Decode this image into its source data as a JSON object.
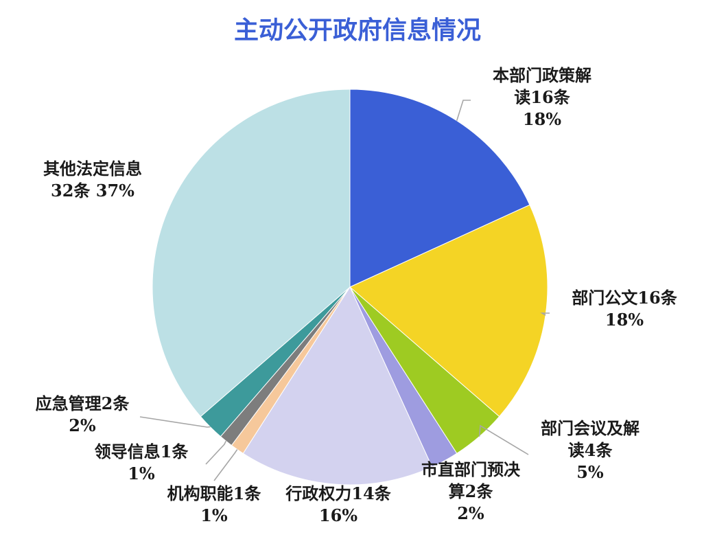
{
  "chart_data": {
    "type": "pie",
    "title": "主动公开政府信息情况",
    "slices": [
      {
        "category": "本部门政策解读",
        "count": 16,
        "percent": 18,
        "color": "#3a5fd6",
        "label_lines": [
          "本部门政策解",
          "读16条",
          "18%"
        ]
      },
      {
        "category": "部门公文",
        "count": 16,
        "percent": 18,
        "color": "#f4d425",
        "label_lines": [
          "部门公文16条",
          "18%"
        ]
      },
      {
        "category": "部门会议及解读",
        "count": 4,
        "percent": 5,
        "color": "#9ecb22",
        "label_lines": [
          "部门会议及解",
          "读4条",
          "5%"
        ]
      },
      {
        "category": "市直部门预决算",
        "count": 2,
        "percent": 2,
        "color": "#9e9ce0",
        "label_lines": [
          "市直部门预决",
          "算2条",
          "2%"
        ]
      },
      {
        "category": "行政权力",
        "count": 14,
        "percent": 16,
        "color": "#d3d2ef",
        "label_lines": [
          "行政权力14条",
          "16%"
        ]
      },
      {
        "category": "机构职能",
        "count": 1,
        "percent": 1,
        "color": "#f6c89b",
        "label_lines": [
          "机构职能1条",
          "1%"
        ]
      },
      {
        "category": "领导信息",
        "count": 1,
        "percent": 1,
        "color": "#7d7d7d",
        "label_lines": [
          "领导信息1条",
          "1%"
        ]
      },
      {
        "category": "应急管理",
        "count": 2,
        "percent": 2,
        "color": "#3d9a9b",
        "label_lines": [
          "应急管理2条",
          "2%"
        ]
      },
      {
        "category": "其他法定信息",
        "count": 32,
        "percent": 37,
        "color": "#bce0e5",
        "label_lines": [
          "其他法定信息",
          "32条 37%"
        ]
      }
    ],
    "legend": "none",
    "data_labels": "outside, with leader lines",
    "title_color": "#3a5fd6"
  }
}
